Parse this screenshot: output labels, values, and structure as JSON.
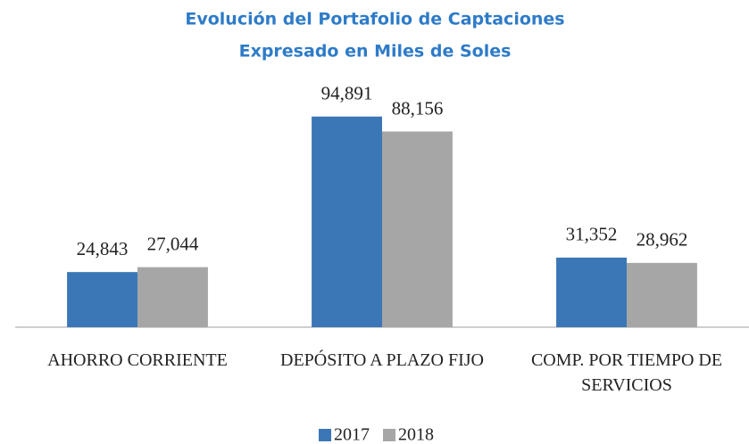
{
  "chart_data": {
    "type": "bar",
    "title": "Evolución del Portafolio de Captaciones",
    "subtitle": "Expresado en Miles de Soles",
    "categories": [
      "AHORRO CORRIENTE",
      "DEPÓSITO A PLAZO FIJO",
      "COMP. POR TIEMPO DE SERVICIOS"
    ],
    "series": [
      {
        "name": "2017",
        "color": "#3b77b6",
        "values": [
          24843,
          94891,
          31352
        ],
        "value_labels": [
          "24,843",
          "94,891",
          "31,352"
        ]
      },
      {
        "name": "2018",
        "color": "#a6a6a6",
        "values": [
          27044,
          88156,
          28962
        ],
        "value_labels": [
          "27,044",
          "88,156",
          "28,962"
        ]
      }
    ],
    "ylim": [
      0,
      100000
    ],
    "legend": "bottom"
  }
}
